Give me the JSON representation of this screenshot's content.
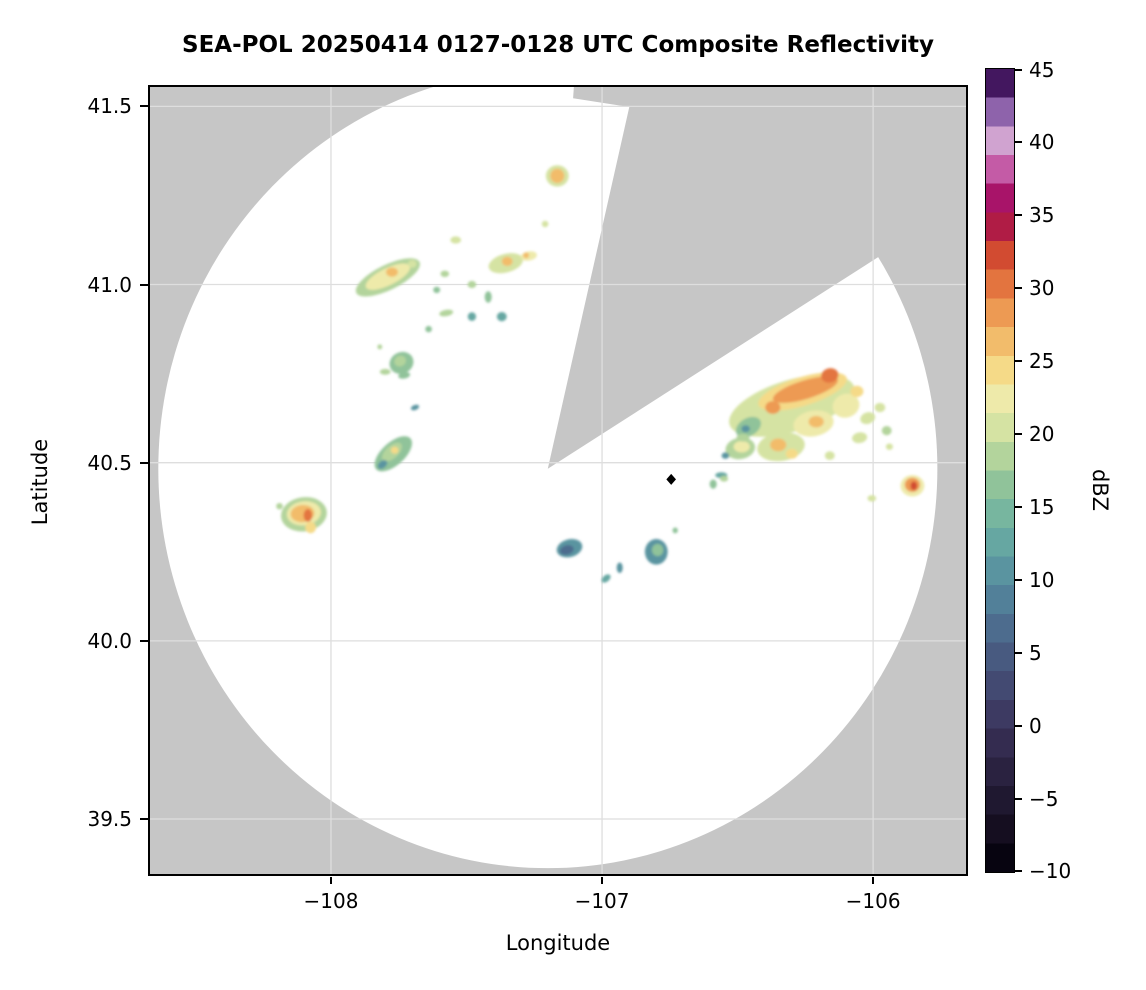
{
  "chart_data": {
    "type": "heatmap",
    "title": "SEA-POL 20250414 0127-0128 UTC Composite Reflectivity",
    "xlabel": "Longitude",
    "ylabel": "Latitude",
    "xlim": [
      -108.675,
      -105.65
    ],
    "ylim": [
      39.34,
      41.56
    ],
    "grid": true,
    "xticks": [
      {
        "value": -108,
        "label": "−108"
      },
      {
        "value": -107,
        "label": "−107"
      },
      {
        "value": -106,
        "label": "−106"
      }
    ],
    "yticks": [
      {
        "value": 41.5,
        "label": "41.5"
      },
      {
        "value": 41.0,
        "label": "41.0"
      },
      {
        "value": 40.5,
        "label": "40.5"
      },
      {
        "value": 40.0,
        "label": "40.0"
      },
      {
        "value": 39.5,
        "label": "39.5"
      }
    ],
    "colors": {
      "outside_scan_gray": "#c6c6c6",
      "scan_area_white": "#ffffff",
      "grid_line": "#dedede",
      "axes_border": "#000000"
    },
    "scan": {
      "center_lon": -107.2,
      "center_lat": 40.483,
      "radius_lon_deg": 1.437,
      "radius_lat_deg": 1.121,
      "missing_sectors": [
        {
          "azimuth_from_deg": 13,
          "azimuth_to_deg": 58,
          "inner_frac": 0.0
        },
        {
          "azimuth_from_deg": 4,
          "azimuth_to_deg": 13.5,
          "inner_frac": 0.93
        }
      ]
    },
    "radar_marker": {
      "lon": -106.745,
      "lat": 40.453,
      "symbol": "diamond",
      "color": "#000000"
    },
    "colorbar": {
      "label": "dBZ",
      "min": -10,
      "max": 45,
      "ticks": [
        {
          "value": 45,
          "label": "45"
        },
        {
          "value": 40,
          "label": "40"
        },
        {
          "value": 35,
          "label": "35"
        },
        {
          "value": 30,
          "label": "30"
        },
        {
          "value": 25,
          "label": "25"
        },
        {
          "value": 20,
          "label": "20"
        },
        {
          "value": 15,
          "label": "15"
        },
        {
          "value": 10,
          "label": "10"
        },
        {
          "value": 5,
          "label": "5"
        },
        {
          "value": 0,
          "label": "0"
        },
        {
          "value": -5,
          "label": "−5"
        },
        {
          "value": -10,
          "label": "−10"
        }
      ],
      "band_colors_bottom_to_top": [
        "#070410",
        "#150e20",
        "#1f1830",
        "#2a2240",
        "#342c50",
        "#3d3a62",
        "#434a72",
        "#485a80",
        "#4d6c8e",
        "#528099",
        "#5a94a0",
        "#66a7a2",
        "#77b69f",
        "#90c39a",
        "#b3d49c",
        "#d5e3a3",
        "#eeeaaa",
        "#f5da88",
        "#f2bc6b",
        "#ed9a53",
        "#e3743f",
        "#d24b31",
        "#b01c45",
        "#a81469",
        "#c45ba6",
        "#d0a3d0",
        "#8e63ab",
        "#43175f"
      ]
    },
    "echoes_format": [
      "lon",
      "lat",
      "rx_deg",
      "ry_deg",
      "rotation_deg",
      "dbz"
    ],
    "echoes": [
      [
        -107.165,
        41.305,
        0.042,
        0.03,
        0,
        21
      ],
      [
        -107.165,
        41.305,
        0.026,
        0.02,
        0,
        27
      ],
      [
        -107.85,
        40.995,
        0.05,
        0.02,
        -20,
        19
      ],
      [
        -107.79,
        41.02,
        0.13,
        0.035,
        -26,
        19
      ],
      [
        -107.79,
        41.022,
        0.09,
        0.024,
        -26,
        22
      ],
      [
        -107.775,
        41.035,
        0.022,
        0.013,
        0,
        26.5
      ],
      [
        -107.7,
        41.058,
        0.016,
        0.011,
        0,
        21
      ],
      [
        -107.355,
        41.06,
        0.065,
        0.026,
        -15,
        21
      ],
      [
        -107.35,
        41.065,
        0.02,
        0.013,
        0,
        26.5
      ],
      [
        -107.27,
        41.08,
        0.03,
        0.013,
        -10,
        22
      ],
      [
        -107.28,
        41.082,
        0.011,
        0.008,
        0,
        27
      ],
      [
        -107.54,
        41.125,
        0.02,
        0.01,
        0,
        21
      ],
      [
        -107.21,
        41.17,
        0.012,
        0.009,
        0,
        21
      ],
      [
        -107.58,
        41.03,
        0.016,
        0.009,
        0,
        18
      ],
      [
        -107.61,
        40.985,
        0.013,
        0.009,
        0,
        16
      ],
      [
        -107.48,
        41.0,
        0.016,
        0.01,
        0,
        19
      ],
      [
        -107.42,
        40.965,
        0.013,
        0.016,
        0,
        16
      ],
      [
        -107.37,
        40.91,
        0.018,
        0.013,
        0,
        12.5
      ],
      [
        -107.48,
        40.91,
        0.015,
        0.012,
        0,
        12.5
      ],
      [
        -107.575,
        40.92,
        0.026,
        0.009,
        -10,
        19
      ],
      [
        -107.64,
        40.875,
        0.012,
        0.009,
        0,
        16
      ],
      [
        -107.82,
        40.825,
        0.009,
        0.007,
        0,
        18
      ],
      [
        -107.74,
        40.78,
        0.045,
        0.03,
        -25,
        16
      ],
      [
        -107.745,
        40.785,
        0.022,
        0.015,
        -25,
        19
      ],
      [
        -107.8,
        40.755,
        0.02,
        0.008,
        0,
        19
      ],
      [
        -107.73,
        40.745,
        0.022,
        0.009,
        -10,
        16
      ],
      [
        -107.69,
        40.655,
        0.016,
        0.007,
        -20,
        10.5
      ],
      [
        -107.77,
        40.525,
        0.085,
        0.032,
        -42,
        16
      ],
      [
        -107.775,
        40.53,
        0.045,
        0.018,
        -42,
        19
      ],
      [
        -107.765,
        40.535,
        0.014,
        0.01,
        0,
        24.5
      ],
      [
        -107.81,
        40.495,
        0.02,
        0.01,
        -40,
        10.5
      ],
      [
        -108.1,
        40.355,
        0.085,
        0.048,
        -8,
        18
      ],
      [
        -108.1,
        40.358,
        0.063,
        0.034,
        -8,
        22
      ],
      [
        -108.105,
        40.357,
        0.044,
        0.024,
        -5,
        26.5
      ],
      [
        -108.085,
        40.352,
        0.016,
        0.018,
        0,
        30.5
      ],
      [
        -108.19,
        40.378,
        0.012,
        0.009,
        0,
        18
      ],
      [
        -108.075,
        40.318,
        0.02,
        0.016,
        0,
        24.5
      ],
      [
        -107.12,
        40.26,
        0.048,
        0.025,
        -15,
        10.5
      ],
      [
        -107.13,
        40.255,
        0.026,
        0.013,
        -15,
        7
      ],
      [
        -106.8,
        40.25,
        0.042,
        0.036,
        0,
        10.5
      ],
      [
        -106.795,
        40.255,
        0.021,
        0.017,
        0,
        16
      ],
      [
        -106.935,
        40.205,
        0.011,
        0.015,
        0,
        10.5
      ],
      [
        -106.985,
        40.175,
        0.019,
        0.009,
        -40,
        12.5
      ],
      [
        -106.73,
        40.31,
        0.01,
        0.008,
        0,
        16
      ],
      [
        -106.49,
        40.54,
        0.055,
        0.03,
        -10,
        19
      ],
      [
        -106.485,
        40.545,
        0.03,
        0.016,
        0,
        22
      ],
      [
        -106.545,
        40.52,
        0.014,
        0.009,
        0,
        10.5
      ],
      [
        -106.34,
        40.545,
        0.088,
        0.04,
        -8,
        21
      ],
      [
        -106.35,
        40.55,
        0.03,
        0.018,
        0,
        26.5
      ],
      [
        -106.3,
        40.525,
        0.022,
        0.014,
        0,
        24.5
      ],
      [
        -106.16,
        40.52,
        0.018,
        0.012,
        0,
        21
      ],
      [
        -106.56,
        40.465,
        0.022,
        0.008,
        0,
        12.5
      ],
      [
        -106.59,
        40.44,
        0.013,
        0.013,
        0,
        16
      ],
      [
        -106.3,
        40.66,
        0.24,
        0.072,
        -17,
        21
      ],
      [
        -106.46,
        40.6,
        0.05,
        0.025,
        -30,
        16
      ],
      [
        -106.47,
        40.595,
        0.016,
        0.01,
        0,
        10.5
      ],
      [
        -106.26,
        40.7,
        0.17,
        0.04,
        -17,
        24.5
      ],
      [
        -106.25,
        40.705,
        0.125,
        0.026,
        -17,
        28.5
      ],
      [
        -106.16,
        40.745,
        0.032,
        0.02,
        -15,
        30.5
      ],
      [
        -106.37,
        40.655,
        0.028,
        0.018,
        0,
        28.5
      ],
      [
        -106.22,
        40.61,
        0.075,
        0.036,
        -10,
        22
      ],
      [
        -106.21,
        40.615,
        0.028,
        0.016,
        0,
        26.5
      ],
      [
        -106.1,
        40.66,
        0.05,
        0.033,
        -20,
        22
      ],
      [
        -106.06,
        40.7,
        0.024,
        0.016,
        0,
        24.5
      ],
      [
        -106.02,
        40.625,
        0.028,
        0.016,
        -20,
        21
      ],
      [
        -105.975,
        40.655,
        0.02,
        0.013,
        0,
        21
      ],
      [
        -105.95,
        40.59,
        0.018,
        0.013,
        0,
        19
      ],
      [
        -106.05,
        40.57,
        0.028,
        0.015,
        -10,
        21
      ],
      [
        -105.94,
        40.545,
        0.013,
        0.009,
        0,
        21
      ],
      [
        -106.48,
        40.57,
        0.024,
        0.011,
        0,
        18
      ],
      [
        -106.55,
        40.455,
        0.015,
        0.008,
        0,
        18
      ],
      [
        -105.855,
        40.435,
        0.044,
        0.03,
        0,
        22
      ],
      [
        -105.855,
        40.438,
        0.028,
        0.02,
        0,
        28.5
      ],
      [
        -105.85,
        40.435,
        0.012,
        0.012,
        0,
        32.5
      ],
      [
        -106.005,
        40.4,
        0.016,
        0.009,
        0,
        21
      ]
    ]
  }
}
